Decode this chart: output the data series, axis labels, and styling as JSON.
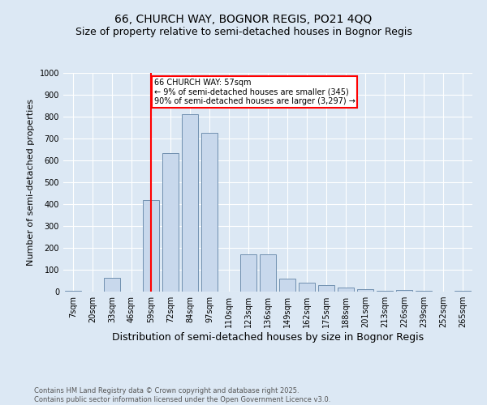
{
  "title1": "66, CHURCH WAY, BOGNOR REGIS, PO21 4QQ",
  "title2": "Size of property relative to semi-detached houses in Bognor Regis",
  "xlabel": "Distribution of semi-detached houses by size in Bognor Regis",
  "ylabel": "Number of semi-detached properties",
  "categories": [
    "7sqm",
    "20sqm",
    "33sqm",
    "46sqm",
    "59sqm",
    "72sqm",
    "84sqm",
    "97sqm",
    "110sqm",
    "123sqm",
    "136sqm",
    "149sqm",
    "162sqm",
    "175sqm",
    "188sqm",
    "201sqm",
    "213sqm",
    "226sqm",
    "239sqm",
    "252sqm",
    "265sqm"
  ],
  "values": [
    2,
    0,
    62,
    0,
    420,
    635,
    810,
    725,
    0,
    170,
    170,
    60,
    42,
    30,
    18,
    12,
    5,
    8,
    2,
    0,
    5
  ],
  "bar_color": "#c8d8ec",
  "bar_edge_color": "#7090b0",
  "vline_x_index": 4,
  "vline_color": "red",
  "annotation_text": "66 CHURCH WAY: 57sqm\n← 9% of semi-detached houses are smaller (345)\n90% of semi-detached houses are larger (3,297) →",
  "annotation_box_color": "white",
  "annotation_box_edge": "red",
  "ylim": [
    0,
    1000
  ],
  "yticks": [
    0,
    100,
    200,
    300,
    400,
    500,
    600,
    700,
    800,
    900,
    1000
  ],
  "footnote": "Contains HM Land Registry data © Crown copyright and database right 2025.\nContains public sector information licensed under the Open Government Licence v3.0.",
  "bg_color": "#dce8f4",
  "plot_bg_color": "#dce8f4",
  "title1_fontsize": 10,
  "title2_fontsize": 9,
  "xlabel_fontsize": 9,
  "ylabel_fontsize": 8,
  "footnote_fontsize": 6,
  "tick_fontsize": 7
}
